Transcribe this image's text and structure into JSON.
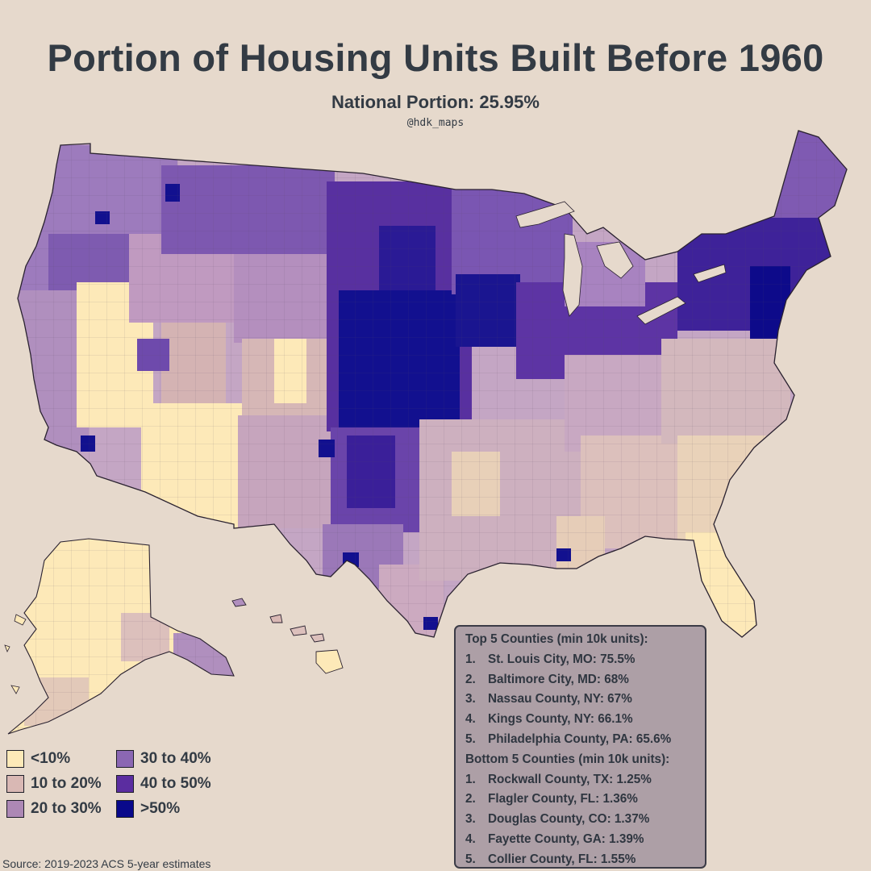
{
  "header": {
    "title": "Portion of Housing Units Built Before 1960",
    "subtitle": "National Portion: 25.95%",
    "handle": "@hdk_maps"
  },
  "legend": {
    "items": [
      {
        "label": "<10%",
        "color": "#fde9b8"
      },
      {
        "label": "30 to 40%",
        "color": "#8b67b3"
      },
      {
        "label": "10 to 20%",
        "color": "#d9b8b4"
      },
      {
        "label": "40 to 50%",
        "color": "#5b2da0"
      },
      {
        "label": "20 to 30%",
        "color": "#ad88b5"
      },
      {
        "label": ">50%",
        "color": "#09098b"
      }
    ]
  },
  "source": "Source: 2019-2023 ACS 5-year estimates",
  "rankings": {
    "top_header": "Top 5 Counties (min 10k units):",
    "top": [
      {
        "rank": "1.",
        "text": "St. Louis City, MO: 75.5%"
      },
      {
        "rank": "2.",
        "text": "Baltimore City, MD: 68%"
      },
      {
        "rank": "3.",
        "text": "Nassau County, NY: 67%"
      },
      {
        "rank": "4.",
        "text": "Kings County, NY: 66.1%"
      },
      {
        "rank": "5.",
        "text": "Philadelphia County, PA: 65.6%"
      }
    ],
    "bottom_header": "Bottom 5 Counties (min 10k units):",
    "bottom": [
      {
        "rank": "1.",
        "text": "Rockwall County, TX: 1.25%"
      },
      {
        "rank": "2.",
        "text": "Flagler County, FL: 1.36%"
      },
      {
        "rank": "3.",
        "text": "Douglas County, CO: 1.37%"
      },
      {
        "rank": "4.",
        "text": "Fayette County, GA: 1.39%"
      },
      {
        "rank": "5.",
        "text": "Collier County, FL: 1.55%"
      }
    ]
  }
}
